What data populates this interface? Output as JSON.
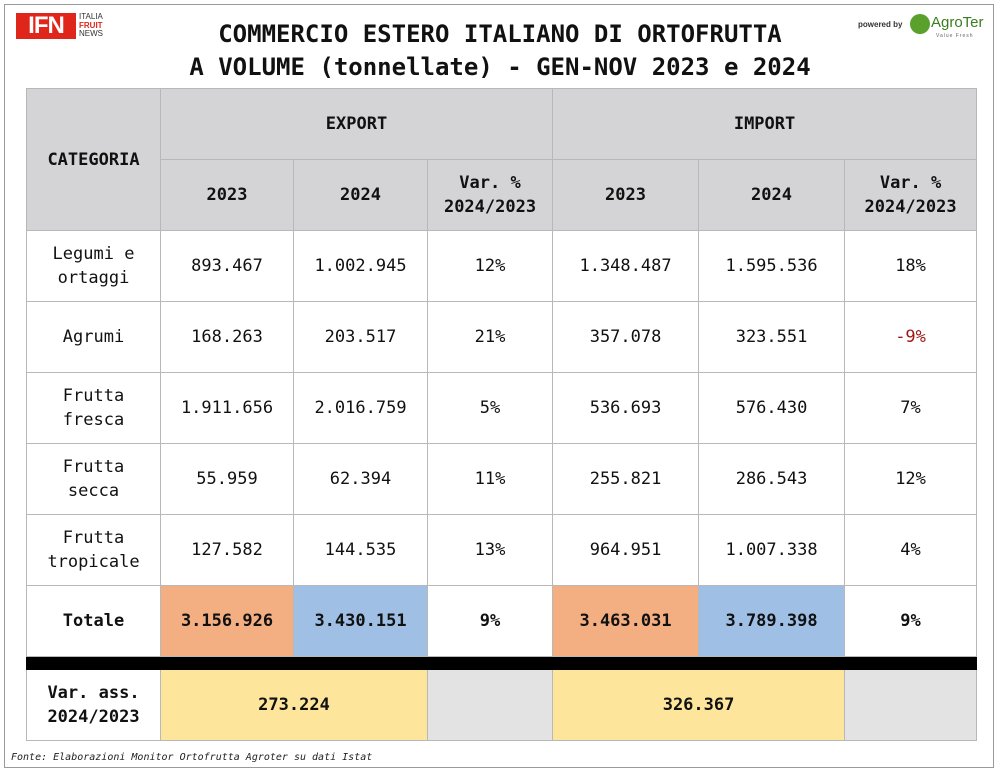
{
  "header": {
    "logo_left": {
      "main": "IFN",
      "line1": "ITALIA",
      "line2": "FRUIT",
      "line3": "NEWS"
    },
    "title_line1": "COMMERCIO ESTERO ITALIANO DI ORTOFRUTTA",
    "title_line2": "A VOLUME (tonnellate) - GEN-NOV 2023 e 2024",
    "powered_by": "powered by",
    "logo_right": {
      "name": "AgroTer",
      "tagline": "Value Fresh"
    }
  },
  "chart_data": {
    "type": "table",
    "title": "COMMERCIO ESTERO ITALIANO DI ORTOFRUTTA A VOLUME (tonnellate) - GEN-NOV 2023 e 2024",
    "column_headers": {
      "category": "CATEGORIA",
      "group_export": "EXPORT",
      "group_import": "IMPORT",
      "year_a": "2023",
      "year_b": "2024",
      "var_line1": "Var. %",
      "var_line2": "2024/2023"
    },
    "rows": [
      {
        "category": [
          "Legumi e",
          "ortaggi"
        ],
        "export_2023": "893.467",
        "export_2024": "1.002.945",
        "export_var": "12%",
        "import_2023": "1.348.487",
        "import_2024": "1.595.536",
        "import_var": "18%"
      },
      {
        "category": [
          "Agrumi"
        ],
        "export_2023": "168.263",
        "export_2024": "203.517",
        "export_var": "21%",
        "import_2023": "357.078",
        "import_2024": "323.551",
        "import_var": "-9%"
      },
      {
        "category": [
          "Frutta",
          "fresca"
        ],
        "export_2023": "1.911.656",
        "export_2024": "2.016.759",
        "export_var": "5%",
        "import_2023": "536.693",
        "import_2024": "576.430",
        "import_var": "7%"
      },
      {
        "category": [
          "Frutta",
          "secca"
        ],
        "export_2023": "55.959",
        "export_2024": "62.394",
        "export_var": "11%",
        "import_2023": "255.821",
        "import_2024": "286.543",
        "import_var": "12%"
      },
      {
        "category": [
          "Frutta",
          "tropicale"
        ],
        "export_2023": "127.582",
        "export_2024": "144.535",
        "export_var": "13%",
        "import_2023": "964.951",
        "import_2024": "1.007.338",
        "import_var": "4%"
      }
    ],
    "total": {
      "label": "Totale",
      "export_2023": "3.156.926",
      "export_2024": "3.430.151",
      "export_var": "9%",
      "import_2023": "3.463.031",
      "import_2024": "3.789.398",
      "import_var": "9%"
    },
    "abs_variation": {
      "label_line1": "Var. ass.",
      "label_line2": "2024/2023",
      "export": "273.224",
      "import": "326.367"
    },
    "colors": {
      "header_bg": "#d4d4d6",
      "total_2023_bg": "#f3ae82",
      "total_2024_bg": "#9fc0e4",
      "abs_var_bg": "#fde59c",
      "negative_text": "#a01818"
    }
  },
  "footer": {
    "source": "Fonte: Elaborazioni Monitor Ortofrutta Agroter su dati Istat"
  }
}
